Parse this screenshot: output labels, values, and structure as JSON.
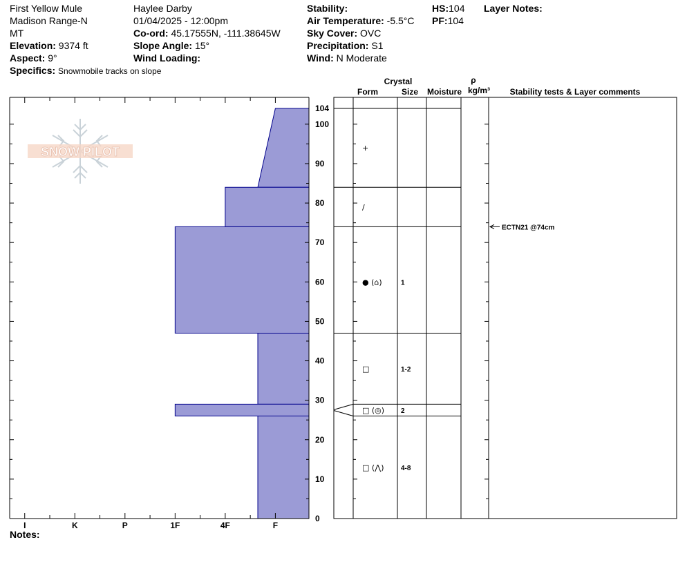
{
  "header": {
    "location": "First Yellow Mule",
    "range": "Madison Range-N",
    "state": "MT",
    "elevation_label": "Elevation:",
    "elevation": "9374 ft",
    "aspect_label": "Aspect:",
    "aspect": "9°",
    "specifics_label": "Specifics:",
    "specifics": "Snowmobile tracks on slope",
    "observer": "Haylee Darby",
    "datetime": "01/04/2025 - 12:00pm",
    "coord_label": "Co-ord:",
    "coord": "45.17555N, -111.38645W",
    "slope_label": "Slope Angle:",
    "slope": "15°",
    "wind_loading_label": "Wind Loading:",
    "wind_loading": "",
    "stability_label": "Stability:",
    "stability": "",
    "air_temp_label": "Air Temperature:",
    "air_temp": "-5.5°C",
    "sky_label": "Sky Cover:",
    "sky": "OVC",
    "precip_label": "Precipitation:",
    "precip": "S1",
    "wind_label": "Wind:",
    "wind": "N Moderate",
    "hs_label": "HS:",
    "hs": "104",
    "pf_label": "PF:",
    "pf": "104",
    "layer_notes_label": "Layer Notes:"
  },
  "table_headers": {
    "crystal": "Crystal",
    "form": "Form",
    "size": "Size",
    "moisture": "Moisture",
    "rho": "ρ",
    "density": "kg/m³",
    "stability_tests": "Stability tests & Layer comments"
  },
  "notes_label": "Notes:",
  "logo_text": "SNOW PILOT",
  "colors": {
    "fill": "#9b9bd6",
    "stroke": "#00008b"
  },
  "chart_data": {
    "type": "area",
    "x_categories": [
      "I",
      "K",
      "P",
      "1F",
      "4F",
      "F"
    ],
    "x_values": [
      1,
      2,
      3,
      4,
      5,
      6
    ],
    "xlim": [
      0.7,
      6.67
    ],
    "y_ticks": [
      0,
      10,
      20,
      30,
      40,
      50,
      60,
      70,
      80,
      90,
      100,
      104
    ],
    "ylim": [
      0,
      104
    ],
    "hardness_profile": [
      {
        "bottom": 84,
        "top": 104,
        "hardness_bottom": 5.65,
        "hardness_top": 6.0
      },
      {
        "bottom": 74,
        "top": 84,
        "hardness": 5.0
      },
      {
        "bottom": 47,
        "top": 74,
        "hardness": 4.0
      },
      {
        "bottom": 29,
        "top": 47,
        "hardness": 5.65
      },
      {
        "bottom": 26,
        "top": 29,
        "hardness": 4.0
      },
      {
        "bottom": 0,
        "top": 26,
        "hardness": 5.65
      }
    ],
    "layer_boundaries": [
      104,
      84,
      74,
      47,
      29,
      26
    ],
    "layers": [
      {
        "height": 94,
        "form": "+",
        "size": ""
      },
      {
        "height": 79,
        "form": "/",
        "size": ""
      },
      {
        "height": 60,
        "form": "● (⌂)",
        "size": "1"
      },
      {
        "height": 38,
        "form": "□",
        "size": "1-2"
      },
      {
        "height": 27.5,
        "form": "□ (◎)",
        "size": "2"
      },
      {
        "height": 13,
        "form": "□ (⋀)",
        "size": "4-8"
      }
    ],
    "stability_tests": [
      {
        "height": 74,
        "text": "ECTN21 @74cm"
      }
    ]
  }
}
